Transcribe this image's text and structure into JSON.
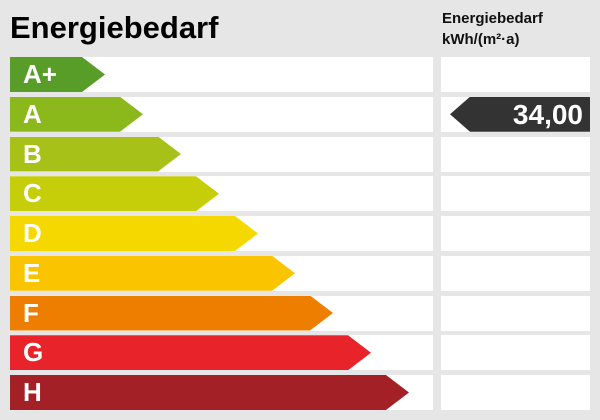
{
  "header": {
    "title": "Energiebedarf",
    "unit_title": "Energiebedarf",
    "unit_subtitle": "kWh/(m²·a)"
  },
  "scale": {
    "rows": [
      {
        "label": "A+",
        "color": "#579d27",
        "arrow_width": 95
      },
      {
        "label": "A",
        "color": "#8bb91c",
        "arrow_width": 133
      },
      {
        "label": "B",
        "color": "#a8c118",
        "arrow_width": 171
      },
      {
        "label": "C",
        "color": "#c6cd09",
        "arrow_width": 209
      },
      {
        "label": "D",
        "color": "#f4d800",
        "arrow_width": 248
      },
      {
        "label": "E",
        "color": "#fbc400",
        "arrow_width": 285
      },
      {
        "label": "F",
        "color": "#ee7e00",
        "arrow_width": 323
      },
      {
        "label": "G",
        "color": "#e8232a",
        "arrow_width": 361
      },
      {
        "label": "H",
        "color": "#a32126",
        "arrow_width": 399
      }
    ]
  },
  "value_marker": {
    "value": "34,00",
    "row": "A",
    "color": "#333333"
  },
  "colors": {
    "background": "#e6e6e6",
    "row_background": "#ffffff",
    "title_text": "#000000",
    "marker_text": "#ffffff"
  },
  "chart_data": {
    "type": "bar",
    "title": "Energiebedarf",
    "ylabel": "",
    "xlabel": "",
    "unit": "kWh/(m²·a)",
    "categories": [
      "A+",
      "A",
      "B",
      "C",
      "D",
      "E",
      "F",
      "G",
      "H"
    ],
    "category_colors": [
      "#579d27",
      "#8bb91c",
      "#a8c118",
      "#c6cd09",
      "#f4d800",
      "#fbc400",
      "#ee7e00",
      "#e8232a",
      "#a32126"
    ],
    "highlighted_category": "A",
    "value": 34.0,
    "value_label": "34,00",
    "legend_position": "none",
    "grid": false
  }
}
